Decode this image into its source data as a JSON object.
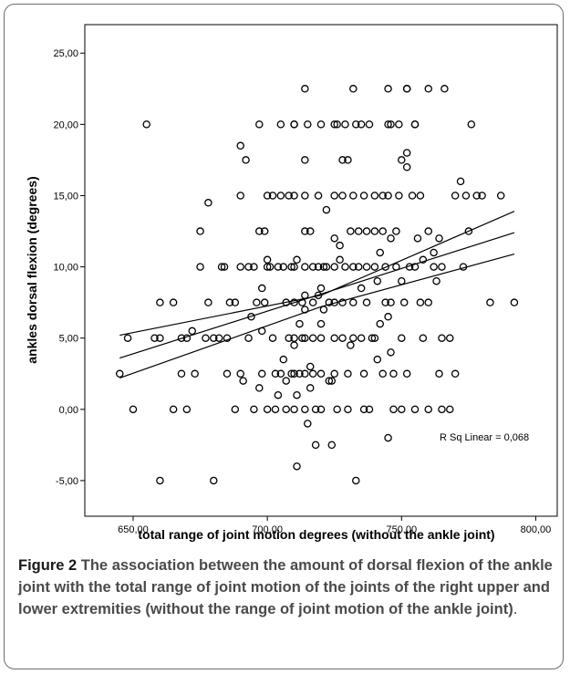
{
  "chart_data": {
    "type": "scatter",
    "xlabel": "total range of joint motion degrees (without the ankle joint)",
    "ylabel": "ankles dorsal flexion (degrees)",
    "xlim": [
      632,
      808
    ],
    "ylim": [
      -7.5,
      27
    ],
    "x_ticks": [
      "650,00",
      "700,00",
      "750,00",
      "800,00"
    ],
    "x_tick_values": [
      650,
      700,
      750,
      800
    ],
    "y_ticks": [
      "-5,00",
      "0,00",
      "5,00",
      "10,00",
      "15,00",
      "20,00",
      "25,00"
    ],
    "y_tick_values": [
      -5,
      0,
      5,
      10,
      15,
      20,
      25
    ],
    "annotation": "R Sq Linear = 0,068",
    "fit_line": {
      "x": [
        645,
        792
      ],
      "y": [
        3.6,
        12.4
      ]
    },
    "ci_upper": {
      "x": [
        645,
        720,
        792
      ],
      "y": [
        5.2,
        8.0,
        13.9
      ]
    },
    "ci_lower": {
      "x": [
        645,
        720,
        792
      ],
      "y": [
        2.2,
        7.2,
        10.9
      ]
    },
    "points": [
      [
        645,
        2.5
      ],
      [
        648,
        5
      ],
      [
        650,
        0
      ],
      [
        655,
        20
      ],
      [
        658,
        5
      ],
      [
        660,
        5
      ],
      [
        660,
        7.5
      ],
      [
        660,
        -5
      ],
      [
        665,
        7.5
      ],
      [
        665,
        0
      ],
      [
        668,
        2.5
      ],
      [
        668,
        5
      ],
      [
        670,
        5
      ],
      [
        670,
        0
      ],
      [
        672,
        5.5
      ],
      [
        673,
        2.5
      ],
      [
        675,
        10
      ],
      [
        675,
        12.5
      ],
      [
        677,
        5
      ],
      [
        678,
        7.5
      ],
      [
        678,
        14.5
      ],
      [
        680,
        5
      ],
      [
        680,
        -5
      ],
      [
        682,
        5
      ],
      [
        683,
        10
      ],
      [
        684,
        10
      ],
      [
        685,
        5
      ],
      [
        685,
        2.5
      ],
      [
        686,
        7.5
      ],
      [
        688,
        7.5
      ],
      [
        688,
        0
      ],
      [
        690,
        10
      ],
      [
        690,
        15
      ],
      [
        690,
        18.5
      ],
      [
        690,
        2.5
      ],
      [
        691,
        2
      ],
      [
        692,
        17.5
      ],
      [
        693,
        5
      ],
      [
        693,
        10
      ],
      [
        694,
        6.5
      ],
      [
        695,
        0
      ],
      [
        695,
        10
      ],
      [
        696,
        7.5
      ],
      [
        697,
        20
      ],
      [
        697,
        1.5
      ],
      [
        697,
        12.5
      ],
      [
        698,
        2.5
      ],
      [
        698,
        5.5
      ],
      [
        698,
        8.5
      ],
      [
        699,
        12.5
      ],
      [
        699,
        7.5
      ],
      [
        700,
        0
      ],
      [
        700,
        10
      ],
      [
        700,
        15
      ],
      [
        700,
        10.5
      ],
      [
        701,
        10
      ],
      [
        702,
        5
      ],
      [
        702,
        15
      ],
      [
        703,
        2.5
      ],
      [
        703,
        0
      ],
      [
        704,
        10
      ],
      [
        704,
        1
      ],
      [
        705,
        20
      ],
      [
        705,
        2.5
      ],
      [
        705,
        15
      ],
      [
        706,
        3.5
      ],
      [
        706,
        10
      ],
      [
        707,
        0
      ],
      [
        707,
        7.5
      ],
      [
        707,
        2
      ],
      [
        708,
        15
      ],
      [
        708,
        5
      ],
      [
        709,
        2.5
      ],
      [
        709,
        10
      ],
      [
        710,
        20
      ],
      [
        710,
        20
      ],
      [
        710,
        15
      ],
      [
        710,
        10
      ],
      [
        710,
        7.5
      ],
      [
        710,
        5
      ],
      [
        710,
        4.5
      ],
      [
        710,
        2.5
      ],
      [
        710,
        0
      ],
      [
        711,
        10.5
      ],
      [
        711,
        -4
      ],
      [
        711,
        1
      ],
      [
        712,
        6
      ],
      [
        712,
        2.5
      ],
      [
        713,
        7.5
      ],
      [
        713,
        5
      ],
      [
        714,
        22.5
      ],
      [
        714,
        17.5
      ],
      [
        714,
        15
      ],
      [
        714,
        12.5
      ],
      [
        714,
        10
      ],
      [
        714,
        8
      ],
      [
        714,
        7
      ],
      [
        714,
        5
      ],
      [
        714,
        2.5
      ],
      [
        714,
        0
      ],
      [
        715,
        20
      ],
      [
        715,
        -1
      ],
      [
        716,
        3
      ],
      [
        716,
        12.5
      ],
      [
        716,
        1.5
      ],
      [
        717,
        10
      ],
      [
        717,
        7.5
      ],
      [
        717,
        5
      ],
      [
        717,
        2.5
      ],
      [
        718,
        0
      ],
      [
        718,
        -2.5
      ],
      [
        719,
        15
      ],
      [
        719,
        10
      ],
      [
        719,
        8
      ],
      [
        720,
        20
      ],
      [
        720,
        6
      ],
      [
        720,
        8.5
      ],
      [
        720,
        5
      ],
      [
        720,
        2.5
      ],
      [
        720,
        0
      ],
      [
        721,
        10
      ],
      [
        721,
        7
      ],
      [
        722,
        14
      ],
      [
        722,
        10
      ],
      [
        723,
        7.5
      ],
      [
        723,
        2
      ],
      [
        724,
        2
      ],
      [
        724,
        -2.5
      ],
      [
        725,
        20
      ],
      [
        725,
        15
      ],
      [
        725,
        12
      ],
      [
        725,
        10
      ],
      [
        725,
        7.5
      ],
      [
        725,
        5
      ],
      [
        725,
        2.5
      ],
      [
        726,
        20
      ],
      [
        726,
        0
      ],
      [
        727,
        11.5
      ],
      [
        727,
        10.5
      ],
      [
        728,
        17.5
      ],
      [
        728,
        15
      ],
      [
        728,
        7.5
      ],
      [
        728,
        5
      ],
      [
        729,
        20
      ],
      [
        729,
        10
      ],
      [
        730,
        17.5
      ],
      [
        730,
        2.5
      ],
      [
        730,
        0
      ],
      [
        731,
        4.5
      ],
      [
        731,
        12.5
      ],
      [
        732,
        22.5
      ],
      [
        732,
        15
      ],
      [
        732,
        10
      ],
      [
        732,
        7.5
      ],
      [
        732,
        5
      ],
      [
        733,
        20
      ],
      [
        733,
        -5
      ],
      [
        734,
        12.5
      ],
      [
        734,
        10
      ],
      [
        735,
        20
      ],
      [
        735,
        8.5
      ],
      [
        735,
        5
      ],
      [
        736,
        15
      ],
      [
        736,
        2.5
      ],
      [
        736,
        0
      ],
      [
        737,
        12.5
      ],
      [
        737,
        10
      ],
      [
        737,
        7.5
      ],
      [
        738,
        20
      ],
      [
        738,
        0
      ],
      [
        739,
        5
      ],
      [
        740,
        15
      ],
      [
        740,
        12.5
      ],
      [
        740,
        10
      ],
      [
        740,
        5
      ],
      [
        741,
        9
      ],
      [
        741,
        3.5
      ],
      [
        742,
        11
      ],
      [
        742,
        6
      ],
      [
        743,
        12.5
      ],
      [
        743,
        15
      ],
      [
        743,
        2.5
      ],
      [
        744,
        7.5
      ],
      [
        744,
        10
      ],
      [
        745,
        22.5
      ],
      [
        745,
        20
      ],
      [
        745,
        15
      ],
      [
        745,
        6.5
      ],
      [
        745,
        -2
      ],
      [
        746,
        20
      ],
      [
        746,
        12
      ],
      [
        746,
        7.5
      ],
      [
        746,
        4
      ],
      [
        747,
        0
      ],
      [
        747,
        2.5
      ],
      [
        748,
        12.5
      ],
      [
        748,
        10
      ],
      [
        749,
        20
      ],
      [
        749,
        15
      ],
      [
        750,
        9
      ],
      [
        750,
        17.5
      ],
      [
        750,
        5
      ],
      [
        750,
        0
      ],
      [
        751,
        7.5
      ],
      [
        752,
        22.5
      ],
      [
        752,
        22.5
      ],
      [
        752,
        18
      ],
      [
        752,
        17
      ],
      [
        752,
        2.5
      ],
      [
        753,
        10
      ],
      [
        754,
        15
      ],
      [
        755,
        20
      ],
      [
        755,
        20
      ],
      [
        755,
        10
      ],
      [
        755,
        0
      ],
      [
        756,
        12
      ],
      [
        757,
        15
      ],
      [
        757,
        7.5
      ],
      [
        758,
        5
      ],
      [
        758,
        10.5
      ],
      [
        760,
        22.5
      ],
      [
        760,
        12.5
      ],
      [
        760,
        7.5
      ],
      [
        760,
        0
      ],
      [
        762,
        11
      ],
      [
        762,
        10
      ],
      [
        763,
        9
      ],
      [
        764,
        2.5
      ],
      [
        764,
        12
      ],
      [
        765,
        10
      ],
      [
        765,
        5
      ],
      [
        765,
        0
      ],
      [
        766,
        22.5
      ],
      [
        768,
        5
      ],
      [
        768,
        0
      ],
      [
        770,
        15
      ],
      [
        770,
        2.5
      ],
      [
        772,
        16
      ],
      [
        773,
        10
      ],
      [
        774,
        15
      ],
      [
        775,
        12.5
      ],
      [
        776,
        20
      ],
      [
        778,
        15
      ],
      [
        780,
        15
      ],
      [
        783,
        7.5
      ],
      [
        787,
        15
      ],
      [
        792,
        7.5
      ]
    ]
  },
  "caption": {
    "lead": "Figure 2",
    "body": " The association between the amount of dorsal flexion of the ankle joint with the total range of joint motion of the joints of the right upper and lower extremities (without the range of joint motion of the ankle joint)",
    "end": "."
  }
}
